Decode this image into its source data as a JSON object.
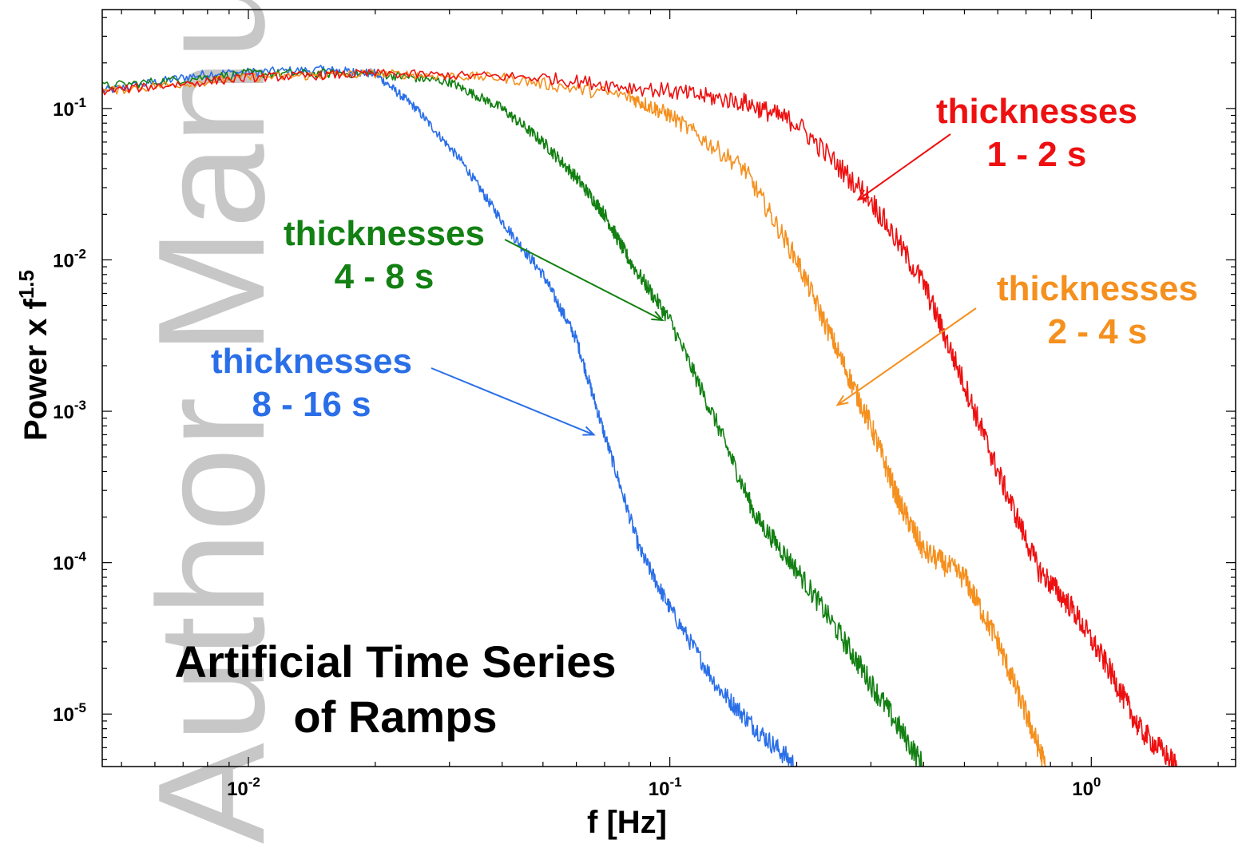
{
  "chart_data": {
    "type": "line",
    "title": [
      "Artificial Time Series",
      "of Ramps"
    ],
    "xlabel": "f    [Hz]",
    "ylabel": {
      "base": "Power x f",
      "exponent": "1.5"
    },
    "xscale": "log",
    "yscale": "log",
    "xlim": [
      0.0045,
      2.2
    ],
    "ylim": [
      4.5e-06,
      0.45
    ],
    "grid": false,
    "watermark": "Author Manuscript",
    "x_ticks": [
      {
        "base": "10",
        "exp": "-2",
        "value": 0.01
      },
      {
        "base": "10",
        "exp": "-1",
        "value": 0.1
      },
      {
        "base": "10",
        "exp": "0",
        "value": 1
      }
    ],
    "y_ticks": [
      {
        "base": "10",
        "exp": "-1",
        "value": 0.1
      },
      {
        "base": "10",
        "exp": "-2",
        "value": 0.01
      },
      {
        "base": "10",
        "exp": "-3",
        "value": 0.001
      },
      {
        "base": "10",
        "exp": "-4",
        "value": 0.0001
      },
      {
        "base": "10",
        "exp": "-5",
        "value": 1e-05
      }
    ],
    "series": [
      {
        "label": [
          "thicknesses",
          "8 - 16 s"
        ],
        "color": "#2a6fe8",
        "x": [
          0.0045,
          0.008,
          0.015,
          0.02,
          0.025,
          0.032,
          0.04,
          0.05,
          0.06,
          0.07,
          0.085,
          0.1,
          0.13,
          0.16,
          0.2
        ],
        "y": [
          0.13,
          0.17,
          0.18,
          0.17,
          0.1,
          0.045,
          0.018,
          0.008,
          0.003,
          0.0007,
          0.00012,
          5e-05,
          1.5e-05,
          8e-06,
          4.5e-06
        ]
      },
      {
        "label": [
          "thicknesses",
          "4 - 8 s"
        ],
        "color": "#128012",
        "x": [
          0.0045,
          0.01,
          0.02,
          0.03,
          0.04,
          0.05,
          0.06,
          0.07,
          0.08,
          0.1,
          0.13,
          0.16,
          0.2,
          0.26,
          0.32,
          0.4
        ],
        "y": [
          0.14,
          0.17,
          0.17,
          0.15,
          0.1,
          0.06,
          0.035,
          0.02,
          0.01,
          0.004,
          0.0008,
          0.0002,
          9e-05,
          3e-05,
          1.2e-05,
          4.5e-06
        ]
      },
      {
        "label": [
          "thicknesses",
          "2 - 4 s"
        ],
        "color": "#f5901e",
        "x": [
          0.0045,
          0.01,
          0.02,
          0.04,
          0.08,
          0.1,
          0.15,
          0.2,
          0.25,
          0.3,
          0.35,
          0.4,
          0.5,
          0.6,
          0.7,
          0.78
        ],
        "y": [
          0.13,
          0.16,
          0.17,
          0.16,
          0.12,
          0.09,
          0.04,
          0.01,
          0.0025,
          0.0008,
          0.00025,
          0.00012,
          8e-05,
          3e-05,
          1e-05,
          4.5e-06
        ]
      },
      {
        "label": [
          "thicknesses",
          "1 - 2 s"
        ],
        "color": "#ee1010",
        "x": [
          0.0045,
          0.01,
          0.02,
          0.05,
          0.1,
          0.15,
          0.2,
          0.3,
          0.4,
          0.5,
          0.6,
          0.75,
          0.9,
          1.1,
          1.3,
          1.6
        ],
        "y": [
          0.13,
          0.16,
          0.17,
          0.16,
          0.13,
          0.11,
          0.08,
          0.025,
          0.007,
          0.0015,
          0.0004,
          9e-05,
          5e-05,
          2e-05,
          8e-06,
          4.5e-06
        ]
      }
    ]
  }
}
